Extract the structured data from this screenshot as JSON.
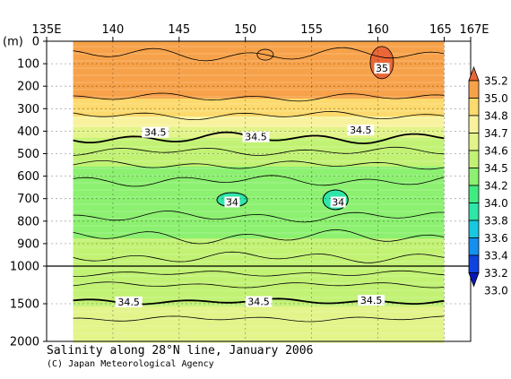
{
  "chart_data": {
    "type": "heatmap",
    "title": "Salinity along 28°N line, January 2006",
    "credit": "(C) Japan Meteorological Agency",
    "x_ticks": [
      "135E",
      "140",
      "145",
      "150",
      "155",
      "160",
      "165",
      "167E"
    ],
    "x_tick_values": [
      135,
      140,
      145,
      150,
      155,
      160,
      165,
      167
    ],
    "x_range": [
      135,
      167
    ],
    "data_x_range": [
      137,
      165
    ],
    "y_unit_label": "(m)",
    "y_ticks_upper": [
      "0",
      "100",
      "200",
      "300",
      "400",
      "500",
      "600",
      "700",
      "800",
      "900",
      "1000"
    ],
    "y_ticks_upper_values": [
      0,
      100,
      200,
      300,
      400,
      500,
      600,
      700,
      800,
      900,
      1000
    ],
    "y_ticks_lower": [
      "1500",
      "2000"
    ],
    "y_ticks_lower_values": [
      1500,
      2000
    ],
    "y_scale_break_at": 1000,
    "colorbar": {
      "levels": [
        33.0,
        33.2,
        33.4,
        33.6,
        33.8,
        34.0,
        34.2,
        34.5,
        34.6,
        34.7,
        34.8,
        35.0,
        35.2
      ],
      "labels": [
        "35.2",
        "35.0",
        "34.8",
        "34.7",
        "34.6",
        "34.5",
        "34.2",
        "34.0",
        "33.8",
        "33.6",
        "33.4",
        "33.2",
        "33.0"
      ],
      "colors": [
        "#0a17b8",
        "#0f43e0",
        "#1490f0",
        "#18c8e0",
        "#2ee6a8",
        "#40ec80",
        "#8cf070",
        "#c2f274",
        "#e2f48a",
        "#f8f29e",
        "#fcda6e",
        "#f7a24a",
        "#ea6637"
      ]
    },
    "salinity_profile_by_depth": [
      {
        "depth": 0,
        "salinity": 35.0
      },
      {
        "depth": 250,
        "salinity": 34.8
      },
      {
        "depth": 330,
        "salinity": 34.7
      },
      {
        "depth": 430,
        "salinity": 34.5
      },
      {
        "depth": 550,
        "salinity": 34.2
      },
      {
        "depth": 700,
        "salinity": 34.0
      },
      {
        "depth": 870,
        "salinity": 34.2
      },
      {
        "depth": 1000,
        "salinity": 34.4
      },
      {
        "depth": 1500,
        "salinity": 34.5
      },
      {
        "depth": 2000,
        "salinity": 34.6
      }
    ],
    "contour_labels": [
      {
        "text": "35",
        "x": 160.3,
        "depth": 120
      },
      {
        "text": "34.5",
        "x": 143.2,
        "depth": 405
      },
      {
        "text": "34.5",
        "x": 150.8,
        "depth": 425
      },
      {
        "text": "34.5",
        "x": 158.7,
        "depth": 395
      },
      {
        "text": "34",
        "x": 149.0,
        "depth": 715
      },
      {
        "text": "34",
        "x": 157.0,
        "depth": 715
      },
      {
        "text": "34.5",
        "x": 141.2,
        "depth": 1475
      },
      {
        "text": "34.5",
        "x": 151.0,
        "depth": 1470
      },
      {
        "text": "34.5",
        "x": 159.5,
        "depth": 1455
      }
    ]
  }
}
